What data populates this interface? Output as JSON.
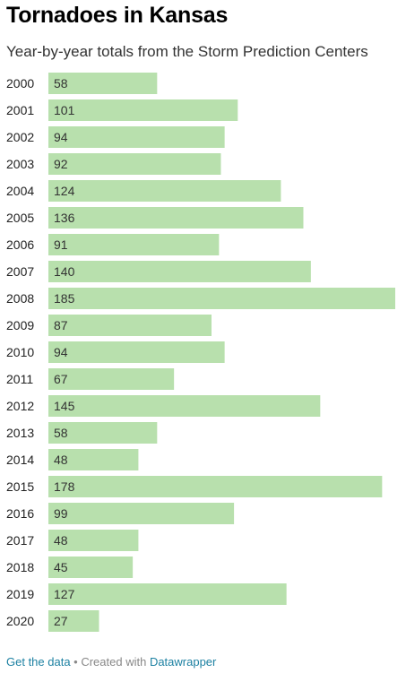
{
  "chart_data": {
    "type": "bar",
    "orientation": "horizontal",
    "title": "Tornadoes in Kansas",
    "subtitle": "Year-by-year totals from the Storm Prediction Centers",
    "categories": [
      "2000",
      "2001",
      "2002",
      "2003",
      "2004",
      "2005",
      "2006",
      "2007",
      "2008",
      "2009",
      "2010",
      "2011",
      "2012",
      "2013",
      "2014",
      "2015",
      "2016",
      "2017",
      "2018",
      "2019",
      "2020"
    ],
    "values": [
      58,
      101,
      94,
      92,
      124,
      136,
      91,
      140,
      185,
      87,
      94,
      67,
      145,
      58,
      48,
      178,
      99,
      48,
      45,
      127,
      27
    ],
    "xlim": [
      0,
      185
    ],
    "bar_color": "#b8e0ad",
    "label_color": "#333333",
    "grid": false,
    "legend": "none"
  },
  "footer": {
    "get_data_label": "Get the data",
    "separator": " • Created with ",
    "credit_label": "Datawrapper",
    "link_color": "#1d81a2"
  }
}
